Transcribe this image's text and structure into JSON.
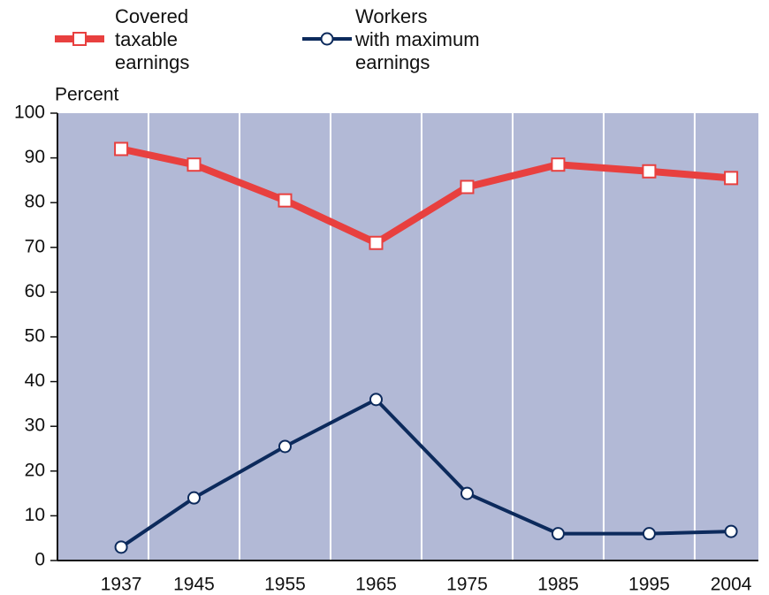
{
  "chart_data": {
    "type": "line",
    "y_label": "Percent",
    "x": [
      1937,
      1945,
      1955,
      1965,
      1975,
      1985,
      1995,
      2004
    ],
    "xticks": [
      1937,
      1945,
      1955,
      1965,
      1975,
      1985,
      1995,
      2004
    ],
    "xlim": [
      1930,
      2007
    ],
    "xgrid": [
      1940,
      1950,
      1960,
      1970,
      1980,
      1990,
      2000
    ],
    "ylim": [
      0,
      100
    ],
    "yticks": [
      0,
      10,
      20,
      30,
      40,
      50,
      60,
      70,
      80,
      90,
      100
    ],
    "background": "#b2b9d6",
    "series": [
      {
        "name": "Covered\ntaxable\nearnings",
        "color": "#e8403f",
        "marker": "square",
        "values": [
          92,
          88.5,
          80.5,
          71,
          83.5,
          88.5,
          87,
          85.5
        ]
      },
      {
        "name": "Workers\nwith maximum\nearnings",
        "color": "#0c2a5c",
        "marker": "circle",
        "values": [
          3,
          14,
          25.5,
          36,
          15,
          6,
          6,
          6.5
        ]
      }
    ]
  }
}
